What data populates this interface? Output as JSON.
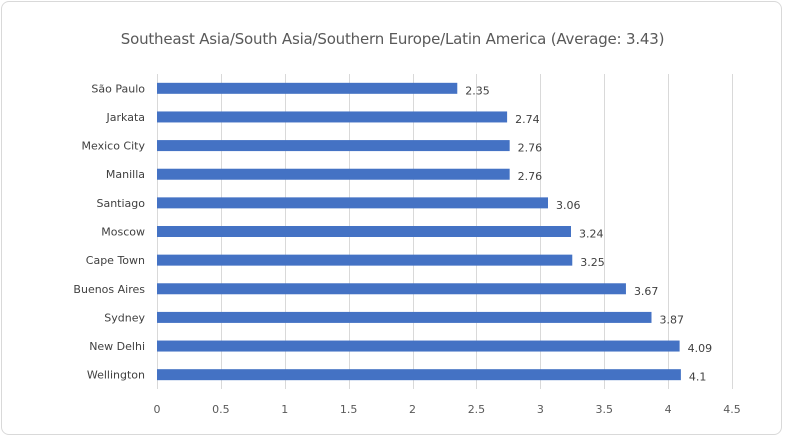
{
  "chart_data": {
    "type": "bar",
    "orientation": "horizontal",
    "title": "Southeast Asia/South Asia/Southern Europe/Latin America (Average: 3.43)",
    "xlabel": "",
    "ylabel": "",
    "categories": [
      "São Paulo",
      "Jarkata",
      "Mexico City",
      "Manilla",
      "Santiago",
      "Moscow",
      "Cape Town",
      "Buenos Aires",
      "Sydney",
      "New Delhi",
      "Wellington"
    ],
    "values": [
      2.35,
      2.74,
      2.76,
      2.76,
      3.06,
      3.24,
      3.25,
      3.67,
      3.87,
      4.09,
      4.1
    ],
    "data_labels": [
      "2.35",
      "2.74",
      "2.76",
      "2.76",
      "3.06",
      "3.24",
      "3.25",
      "3.67",
      "3.87",
      "4.09",
      "4.1"
    ],
    "xlim": [
      0,
      4.5
    ],
    "xticks": [
      0,
      0.5,
      1,
      1.5,
      2,
      2.5,
      3,
      3.5,
      4,
      4.5
    ],
    "xtick_labels": [
      "0",
      "0.5",
      "1",
      "1.5",
      "2",
      "2.5",
      "3",
      "3.5",
      "4",
      "4.5"
    ],
    "grid": "vertical",
    "legend": "none",
    "bar_color": "#4472c4",
    "grid_color": "#d9d9d9"
  }
}
